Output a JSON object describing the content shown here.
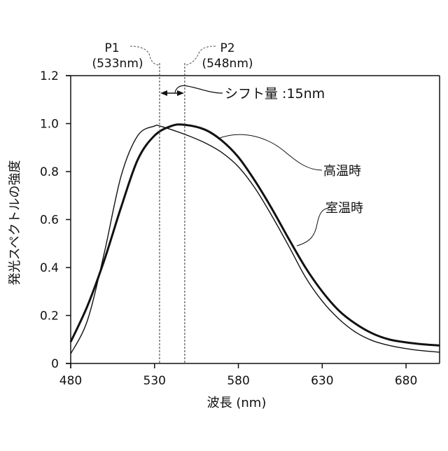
{
  "chart_data": {
    "type": "line",
    "xlabel": "波長 (nm)",
    "ylabel": "発光スペクトルの強度",
    "xlim": [
      480,
      700
    ],
    "ylim": [
      0,
      1.2
    ],
    "x_ticks": [
      "480",
      "530",
      "580",
      "630",
      "680"
    ],
    "y_ticks": [
      "0",
      "0.2",
      "0.4",
      "0.6",
      "0.8",
      "1.0",
      "1.2"
    ],
    "grid": false,
    "series": [
      {
        "name": "高温時",
        "style": "thick",
        "x": [
          480,
          490,
          500,
          510,
          520,
          530,
          540,
          548,
          560,
          570,
          580,
          590,
          600,
          610,
          620,
          630,
          640,
          650,
          660,
          670,
          680,
          690,
          700
        ],
        "y": [
          0.09,
          0.24,
          0.43,
          0.65,
          0.85,
          0.95,
          0.99,
          0.995,
          0.975,
          0.93,
          0.86,
          0.76,
          0.645,
          0.52,
          0.4,
          0.3,
          0.22,
          0.165,
          0.125,
          0.1,
          0.088,
          0.08,
          0.075
        ]
      },
      {
        "name": "室温時",
        "style": "thin",
        "x": [
          480,
          490,
          500,
          510,
          520,
          530,
          533,
          540,
          550,
          560,
          570,
          580,
          590,
          600,
          610,
          620,
          630,
          640,
          650,
          660,
          670,
          680,
          690,
          700
        ],
        "y": [
          0.04,
          0.18,
          0.46,
          0.78,
          0.95,
          0.99,
          0.99,
          0.975,
          0.95,
          0.92,
          0.88,
          0.82,
          0.73,
          0.615,
          0.49,
          0.36,
          0.26,
          0.185,
          0.13,
          0.095,
          0.075,
          0.062,
          0.053,
          0.047
        ]
      }
    ],
    "annotations": {
      "p1_label": "P1",
      "p1_value": "(533nm)",
      "p1_x": 533,
      "p2_label": "P2",
      "p2_value": "(548nm)",
      "p2_x": 548,
      "shift_label": "シフト量 :15nm"
    }
  }
}
